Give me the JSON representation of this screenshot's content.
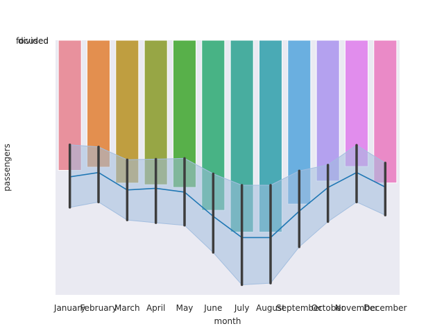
{
  "chart_data": {
    "type": "bar",
    "xlabel": "month",
    "ylabel": "passengers",
    "y_tick_labels": [
      "divided",
      "focused"
    ],
    "categories": [
      "January",
      "February",
      "March",
      "April",
      "May",
      "June",
      "July",
      "August",
      "September",
      "October",
      "November",
      "December"
    ],
    "colors": [
      "#e8919d",
      "#e38f4f",
      "#bf9e40",
      "#97a645",
      "#58b04a",
      "#48b385",
      "#48ad9f",
      "#4aaab5",
      "#6aafe0",
      "#b4a1ef",
      "#e18ded",
      "#ea8ac7"
    ],
    "line_color": "#1f77b4",
    "band_color": "#a3bedf",
    "background": "#eaeaf2",
    "bars": {
      "comment_free": null,
      "values": [
        5.28,
        5.53,
        4.28,
        4.15,
        3.94,
        2.14,
        0.43,
        0.43,
        2.63,
        4.44,
        5.58,
        4.29
      ]
    },
    "line": {
      "values": [
        4.77,
        5.11,
        3.74,
        3.87,
        3.57,
        1.67,
        0.0,
        0.0,
        2.07,
        3.93,
        5.11,
        3.97
      ]
    },
    "error_bars": {
      "lower": [
        2.37,
        2.79,
        1.38,
        1.16,
        0.96,
        -1.17,
        -3.71,
        -3.58,
        -0.73,
        1.25,
        2.79,
        1.76
      ],
      "upper": [
        7.29,
        7.12,
        6.11,
        6.16,
        6.22,
        5.01,
        4.11,
        4.11,
        5.24,
        5.7,
        7.26,
        5.86
      ]
    },
    "band": {
      "lower": [
        2.37,
        2.79,
        1.38,
        1.16,
        0.96,
        -1.17,
        -3.71,
        -3.58,
        -0.73,
        1.25,
        2.79,
        1.76
      ],
      "upper": [
        7.29,
        7.12,
        6.11,
        6.16,
        6.22,
        5.01,
        4.11,
        4.11,
        5.24,
        5.7,
        7.26,
        5.86
      ]
    },
    "ylim": [
      -4.5,
      15.5
    ],
    "grid": false,
    "legend": "none"
  }
}
